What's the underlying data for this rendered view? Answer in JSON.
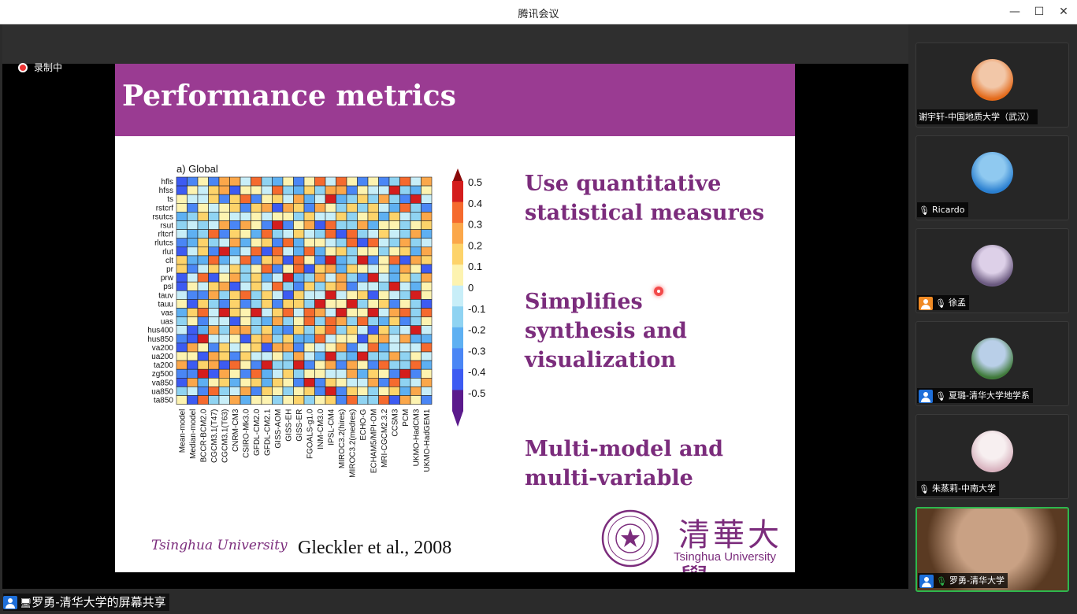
{
  "window": {
    "title": "腾讯会议",
    "minimize": "—",
    "maximize": "☐",
    "close": "✕"
  },
  "recording": {
    "label": "录制中"
  },
  "slide": {
    "title": "Performance metrics",
    "bullets": [
      "Use quantitative\nstatistical measures",
      "Simplifies\nsynthesis and\nvisualization",
      "Multi-model and\nmulti-variable"
    ],
    "footer_university": "Tsinghua University",
    "citation": "Gleckler et al., 2008",
    "logo_cn": "清華大學",
    "logo_en": "Tsinghua University"
  },
  "chart_data": {
    "type": "heatmap",
    "title": "a)  Global",
    "rows": [
      "hfls",
      "hfss",
      "ts",
      "rstcrf",
      "rsutcs",
      "rsut",
      "rltcrf",
      "rlutcs",
      "rlut",
      "clt",
      "pr",
      "prw",
      "psl",
      "tauv",
      "tauu",
      "vas",
      "uas",
      "hus400",
      "hus850",
      "va200",
      "ua200",
      "ta200",
      "zg500",
      "va850",
      "ua850",
      "ta850"
    ],
    "columns": [
      "Mean-model",
      "Median-model",
      "BCCR-BCM2.0",
      "CGCM3.1(T47)",
      "CGCM3.1(T63)",
      "CNRM-CM3",
      "CSIRO-Mk3.0",
      "GFDL-CM2.0",
      "GFDL-CM2.1",
      "GISS-AOM",
      "GISS-EH",
      "GISS-ER",
      "FGOALS-g1.0",
      "INM-CM3.0",
      "IPSL-CM4",
      "MIROC3.2(hires)",
      "MIROC3.2(medres)",
      "ECHO-G",
      "ECHAM5/MPI-OM",
      "MRI-CGCM2.3.2",
      "CCSM3",
      "PCM",
      "UKMO-HadCM3",
      "UKMO-HadGEM1"
    ],
    "colorbar_ticks": [
      "0.5",
      "0.4",
      "0.3",
      "0.2",
      "0.1",
      "0",
      "-0.1",
      "-0.2",
      "-0.3",
      "-0.4",
      "-0.5"
    ],
    "vmin": -0.5,
    "vmax": 0.5,
    "colors": [
      "#5b1a8c",
      "#3d5bf2",
      "#4a86f5",
      "#5eb0f2",
      "#8fd3f2",
      "#c8eef8",
      "#fdf3b0",
      "#fdd36a",
      "#fba74a",
      "#f56a2e",
      "#d41d1d",
      "#8a0a0a"
    ]
  },
  "participants": [
    {
      "name": "谢宇轩-中国地质大学（武汉）",
      "mic": false,
      "host_icon": false,
      "avatar_colors": [
        "#f2c7a8",
        "#e46a1a"
      ]
    },
    {
      "name": "Ricardo",
      "mic": true,
      "host_icon": false,
      "avatar_colors": [
        "#8fc9f0",
        "#2a7fd0"
      ]
    },
    {
      "name": "徐孟",
      "mic": true,
      "host_icon": true,
      "host_color": "orange",
      "avatar_colors": [
        "#ddd0e8",
        "#6b5a80"
      ]
    },
    {
      "name": "夏璐-清华大学地学系",
      "mic": true,
      "host_icon": true,
      "host_color": "blue",
      "avatar_colors": [
        "#b9cfe8",
        "#3f7a3a"
      ]
    },
    {
      "name": "朱蒸莉-中南大学",
      "mic": true,
      "host_icon": false,
      "avatar_colors": [
        "#f7eff0",
        "#d9b4c0"
      ]
    },
    {
      "name": "罗勇-清华大学",
      "mic": true,
      "host_icon": true,
      "host_color": "blue",
      "active": true,
      "avatar_colors": [
        "#c9a184",
        "#5a3a22"
      ]
    }
  ],
  "screen_share": {
    "label": "罗勇-清华大学的屏幕共享"
  }
}
